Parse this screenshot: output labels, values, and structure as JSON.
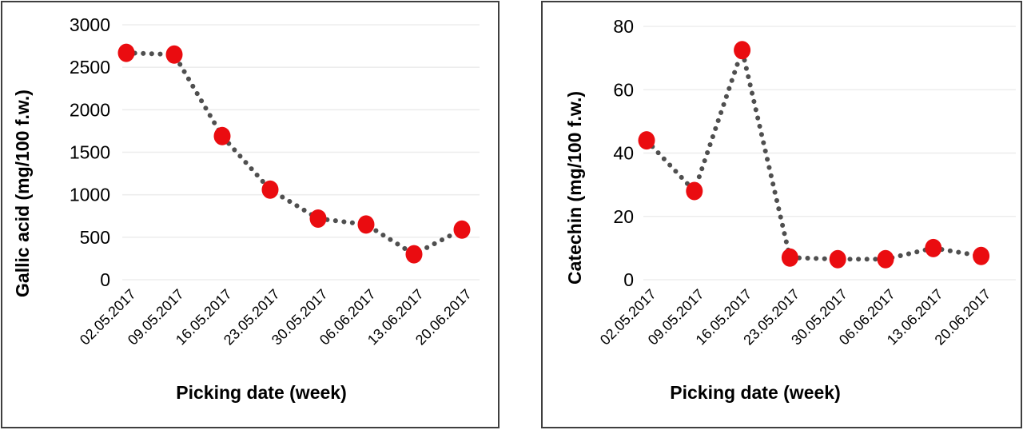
{
  "page": {
    "background_color": "#ffffff",
    "panel_border_color": "#3f3f3f"
  },
  "chart_data": [
    {
      "type": "line",
      "title": "",
      "xlabel": "Picking date  (week)",
      "ylabel": "Gallic acid (mg/100 f.w.)",
      "categories": [
        "02.05.2017",
        "09.05.2017",
        "16.05.2017",
        "23.05.2017",
        "30.05.2017",
        "06.06.2017",
        "13.06.2017",
        "20.06.2017"
      ],
      "values": [
        2670,
        2650,
        1690,
        1060,
        720,
        650,
        300,
        590
      ],
      "ylim": [
        0,
        3000
      ],
      "ytick_step": 500,
      "yticks": [
        0,
        500,
        1000,
        1500,
        2000,
        2500,
        3000
      ],
      "grid": true,
      "legend": "none",
      "line_style": "dotted",
      "line_color": "#4f4f4f",
      "marker_color": "#ea0c10",
      "gridline_color": "#ededed"
    },
    {
      "type": "line",
      "title": "",
      "xlabel": "Picking date  (week)",
      "ylabel": "Catechin (mg/100 f.w.)",
      "categories": [
        "02.05.2017",
        "09.05.2017",
        "16.05.2017",
        "23.05.2017",
        "30.05.2017",
        "06.06.2017",
        "13.06.2017",
        "20.06.2017"
      ],
      "values": [
        44,
        28,
        72.5,
        7,
        6.5,
        6.5,
        10,
        7.5
      ],
      "ylim": [
        0,
        80
      ],
      "ytick_step": 20,
      "yticks": [
        0,
        20,
        40,
        60,
        80
      ],
      "grid": true,
      "legend": "none",
      "line_style": "dotted",
      "line_color": "#4f4f4f",
      "marker_color": "#ea0c10",
      "gridline_color": "#ededed"
    }
  ]
}
